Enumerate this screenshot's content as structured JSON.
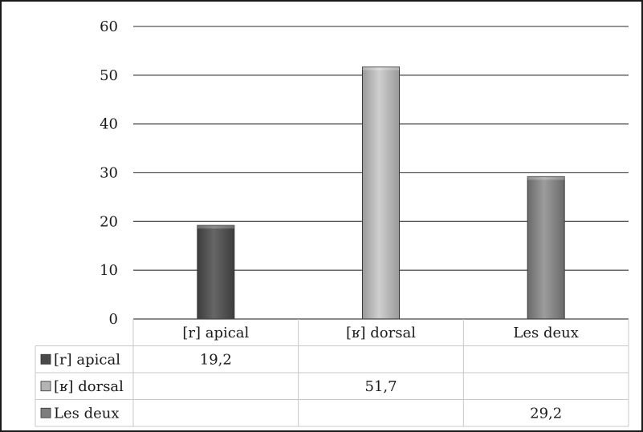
{
  "chart_data": {
    "type": "bar",
    "categories": [
      "[r] apical",
      "[ʁ] dorsal",
      "Les deux"
    ],
    "series": [
      {
        "name": "[r] apical",
        "values": [
          19.2,
          null,
          null
        ],
        "color": "#5a5a5a"
      },
      {
        "name": "[ʁ] dorsal",
        "values": [
          null,
          51.7,
          null
        ],
        "color": "#b4b4b4"
      },
      {
        "name": "Les deux",
        "values": [
          null,
          null,
          29.2
        ],
        "color": "#8a8a8a"
      }
    ],
    "value_labels": [
      "19,2",
      "51,7",
      "29,2"
    ],
    "yticks": [
      "0",
      "10",
      "20",
      "30",
      "40",
      "50",
      "60"
    ],
    "ylim": [
      0,
      60
    ],
    "grid": true,
    "legend": "data-table",
    "title": "",
    "xlabel": "",
    "ylabel": ""
  }
}
